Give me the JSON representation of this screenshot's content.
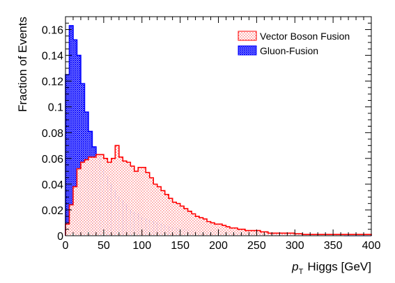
{
  "chart_data": {
    "type": "bar",
    "subtype": "histogram",
    "xlabel_var": "p",
    "xlabel_sub": "T",
    "xlabel_rest": "Higgs [GeV]",
    "ylabel": "Fraction of Events",
    "xlim": [
      0,
      400
    ],
    "ylim": [
      0,
      0.17
    ],
    "xticks": [
      0,
      50,
      100,
      150,
      200,
      250,
      300,
      350,
      400
    ],
    "yticks": [
      0,
      0.02,
      0.04,
      0.06,
      0.08,
      0.1,
      0.12,
      0.14,
      0.16
    ],
    "ytick_labels": [
      "0",
      "0.02",
      "0.04",
      "0.06",
      "0.08",
      "0.1",
      "0.12",
      "0.14",
      "0.16"
    ],
    "bin_width": 5,
    "grid": false,
    "legend_position": "top-right",
    "series": [
      {
        "name": "Gluon-Fusion",
        "color": "#0000ff",
        "fill": "crosshatch",
        "values": [
          0.125,
          0.163,
          0.152,
          0.14,
          0.118,
          0.096,
          0.081,
          0.069,
          0.063,
          0.052,
          0.046,
          0.04,
          0.035,
          0.03,
          0.027,
          0.024,
          0.02,
          0.018,
          0.017,
          0.014,
          0.013,
          0.012,
          0.011,
          0.01,
          0.009,
          0.008,
          0.007,
          0.006,
          0.006,
          0.005,
          0.005,
          0.0045,
          0.004,
          0.004,
          0.0035,
          0.003,
          0.003,
          0.0028,
          0.0025,
          0.0023,
          0.002,
          0.0018,
          0.0016,
          0.0015,
          0.0014,
          0.0013,
          0.0012,
          0.0011,
          0.001,
          0.001,
          0.0009,
          0.0009,
          0.0008,
          0.0008,
          0.0007,
          0.0007,
          0.0006,
          0.0006,
          0.0005,
          0.0005,
          0.0005,
          0.0004,
          0.0004,
          0.0004,
          0.0003,
          0.0003,
          0.0003,
          0.0003,
          0.0002,
          0.0002,
          0.0002,
          0.0002,
          0.0002,
          0.0001,
          0.0001,
          0.0001,
          0.0001,
          0.0001,
          0.0001,
          0.0001
        ]
      },
      {
        "name": "Vector Boson Fusion",
        "color": "#ff0000",
        "fill": "dots",
        "values": [
          0.009,
          0.024,
          0.038,
          0.052,
          0.057,
          0.059,
          0.061,
          0.061,
          0.063,
          0.063,
          0.06,
          0.057,
          0.06,
          0.07,
          0.061,
          0.058,
          0.057,
          0.054,
          0.05,
          0.053,
          0.053,
          0.049,
          0.045,
          0.04,
          0.038,
          0.035,
          0.032,
          0.029,
          0.026,
          0.025,
          0.023,
          0.021,
          0.019,
          0.017,
          0.015,
          0.014,
          0.013,
          0.011,
          0.01,
          0.009,
          0.009,
          0.008,
          0.007,
          0.006,
          0.006,
          0.005,
          0.005,
          0.004,
          0.004,
          0.004,
          0.004,
          0.003,
          0.003,
          0.002,
          0.002,
          0.002,
          0.002,
          0.002,
          0.002,
          0.002,
          0.0015,
          0.0015,
          0.001,
          0.001,
          0.001,
          0.001,
          0.001,
          0.001,
          0.001,
          0.001,
          0.001,
          0.001,
          0.001,
          0.001,
          0.001,
          0.001,
          0.001,
          0.001,
          0.001,
          0.001
        ]
      }
    ]
  }
}
